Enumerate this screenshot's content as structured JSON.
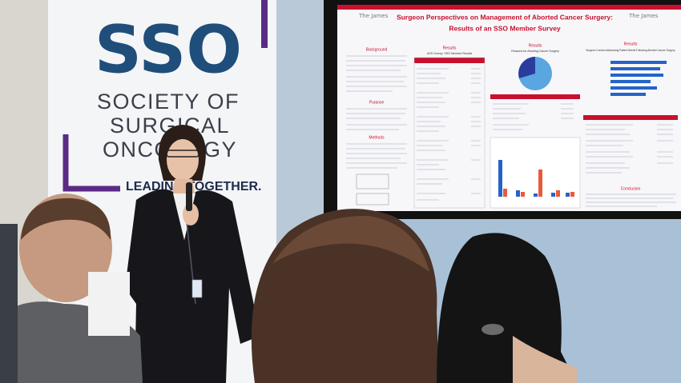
{
  "banner": {
    "logo": "SSO",
    "name_lines": [
      "SOCIETY OF",
      "SURGICAL",
      "ONCOLOGY"
    ],
    "tagline": "LEADING TOGETHER."
  },
  "poster": {
    "title_lines": [
      "Surgeon Perspectives on Management of Aborted Cancer Surgery:",
      "Results of an SSO Member Survey"
    ],
    "logo_left": "The James",
    "logo_right": "The James",
    "sections": [
      "Background",
      "Purpose",
      "Methods",
      "Results",
      "Results",
      "Results",
      "Conclusion"
    ],
    "subtitles": [
      "AOS Survey: SSO Member Results",
      "Reasons for Aborting Cancer Surgery",
      "Surgeon Comfort Addressing Patient Needs Following Aborted Cancer Surgery"
    ]
  }
}
